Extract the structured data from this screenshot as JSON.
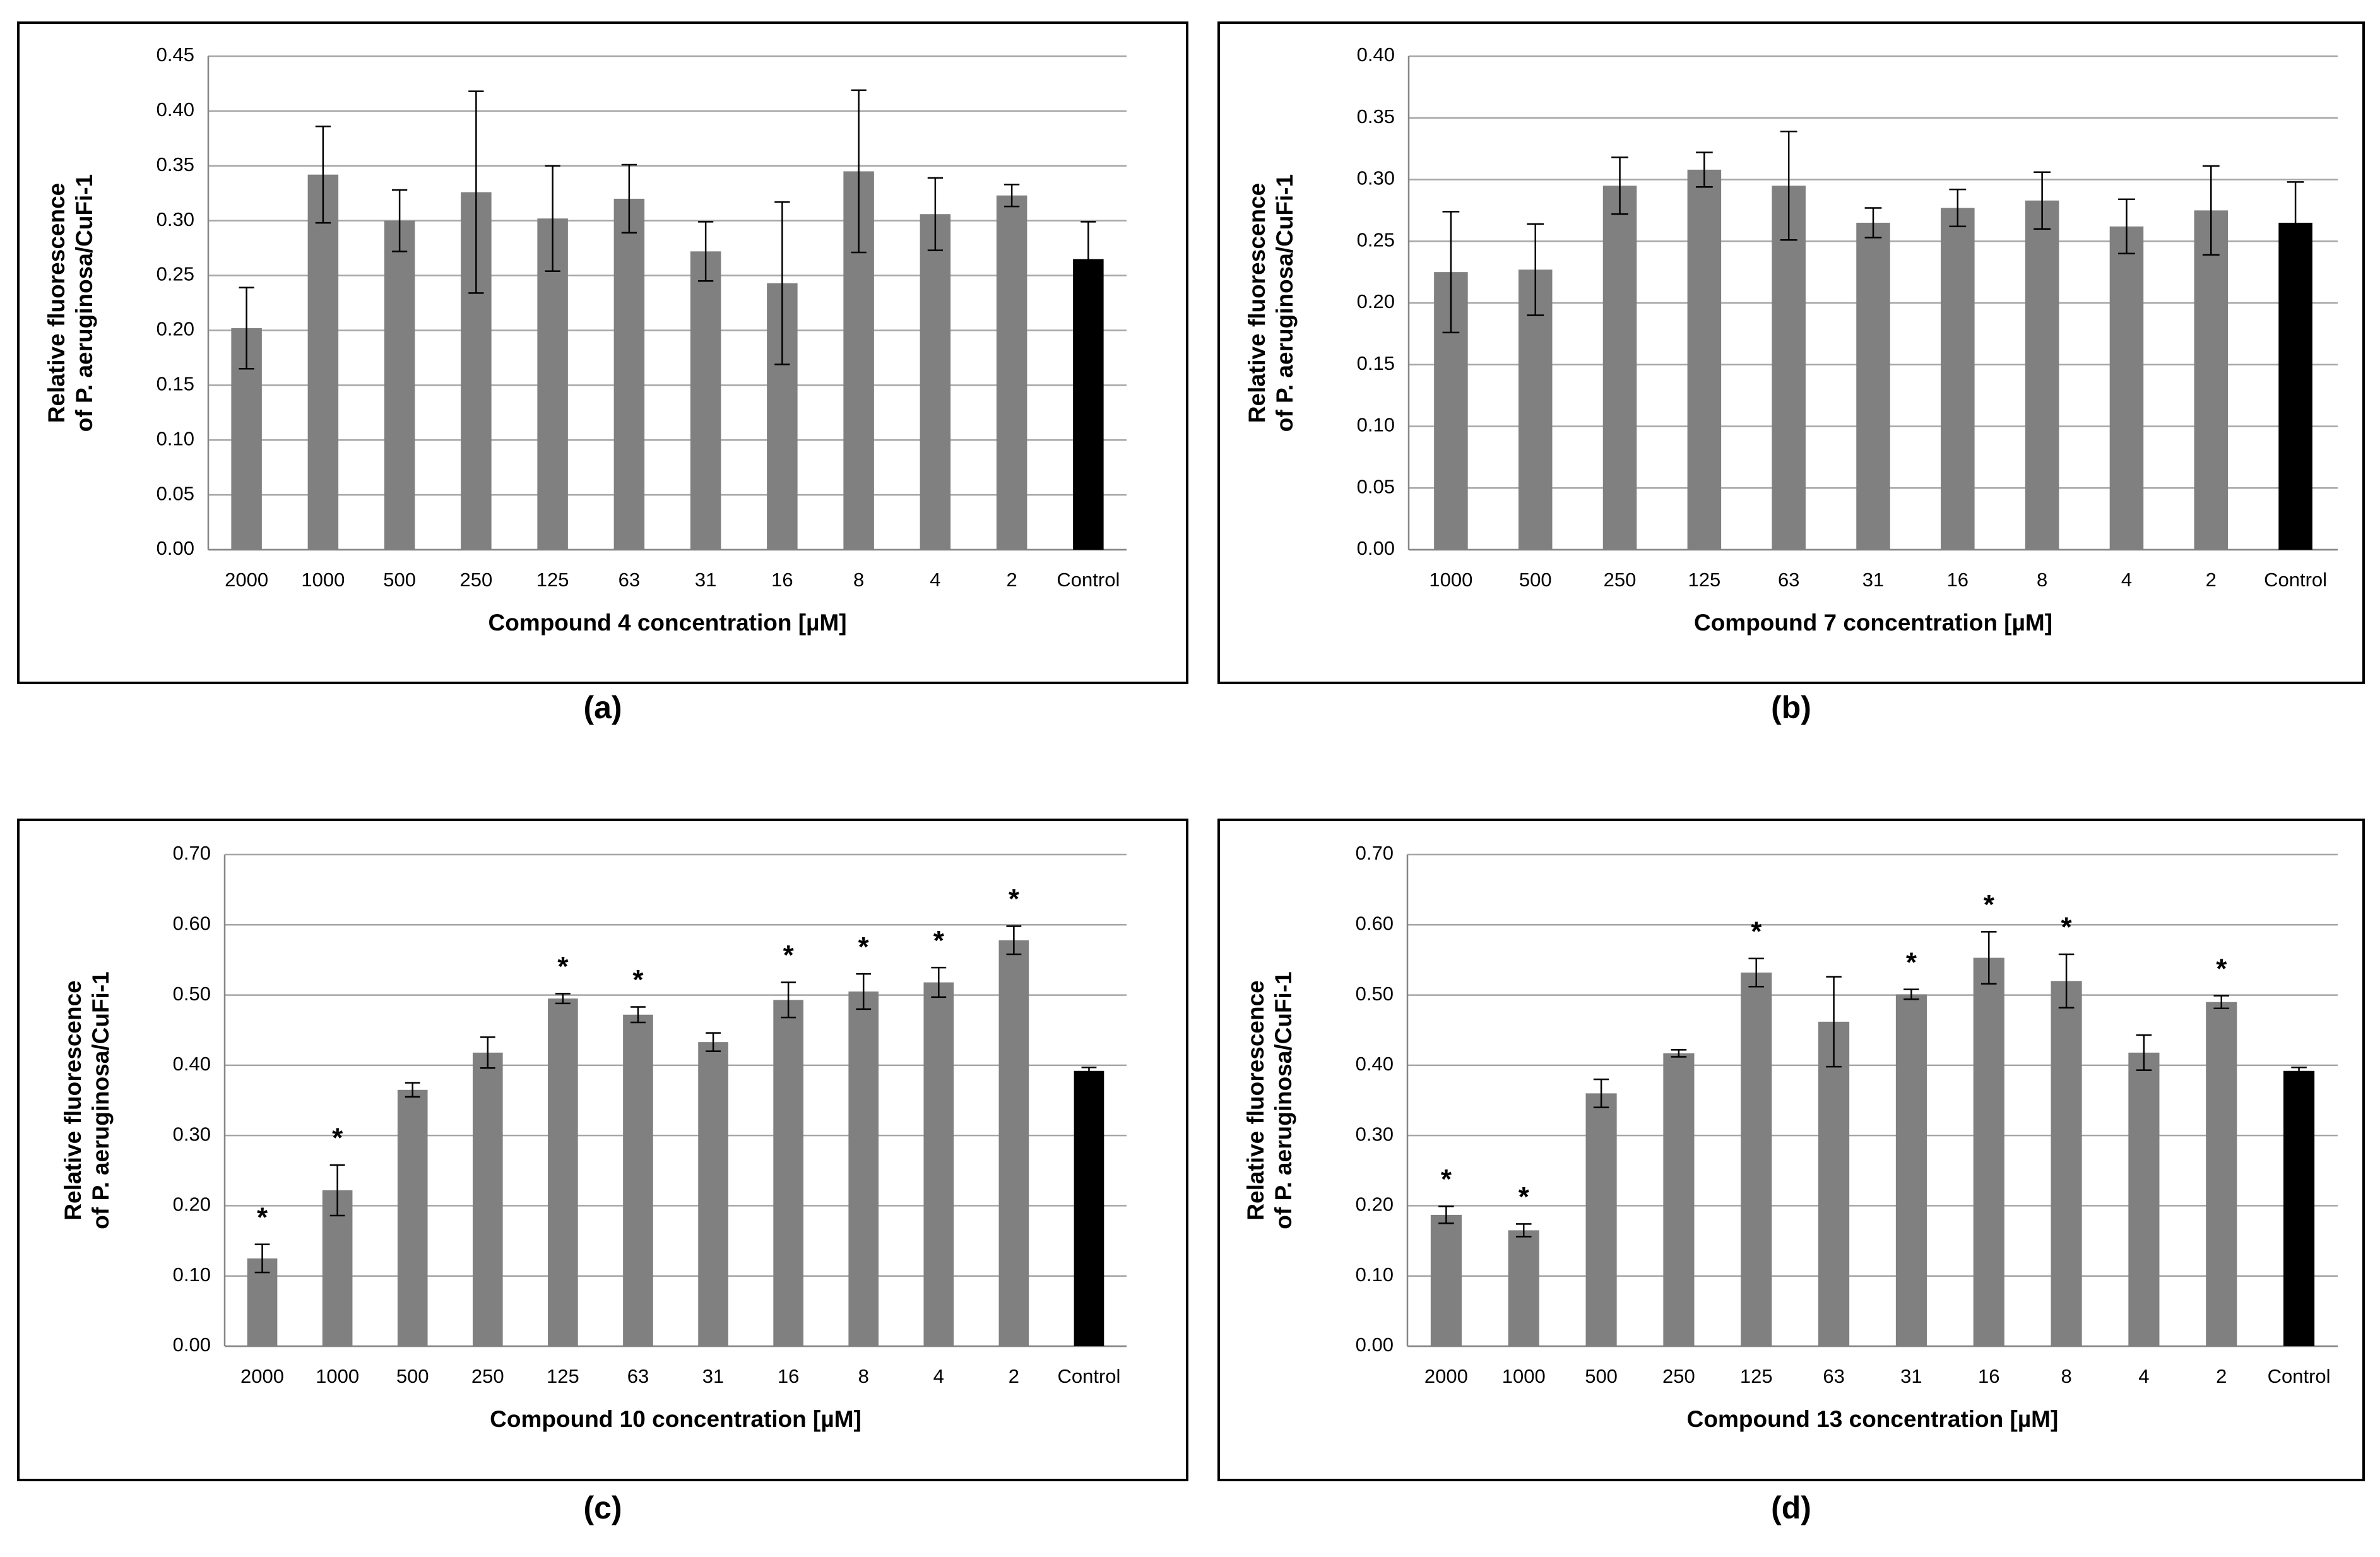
{
  "chart_data": [
    {
      "type": "bar",
      "panel_label": "(a)",
      "x_label": "Compound 4 concentration [µM]",
      "y_label": [
        "Relative fluorescence",
        "of P. aeruginosa/CuFi-1"
      ],
      "categories": [
        "2000",
        "1000",
        "500",
        "250",
        "125",
        "63",
        "31",
        "16",
        "8",
        "4",
        "2",
        "Control"
      ],
      "values": [
        0.202,
        0.342,
        0.3,
        0.326,
        0.302,
        0.32,
        0.272,
        0.243,
        0.345,
        0.306,
        0.323,
        0.265
      ],
      "errors": [
        0.037,
        0.044,
        0.028,
        0.092,
        0.048,
        0.031,
        0.027,
        0.074,
        0.074,
        0.033,
        0.01,
        0.034
      ],
      "colors": [
        "#808080",
        "#808080",
        "#808080",
        "#808080",
        "#808080",
        "#808080",
        "#808080",
        "#808080",
        "#808080",
        "#808080",
        "#808080",
        "#000000"
      ],
      "ylim": [
        0,
        0.45
      ],
      "yticks": [
        {
          "value": 0,
          "label": "0.00"
        },
        0.05,
        {
          "value": 0.1,
          "label": "0.10"
        },
        0.15,
        {
          "value": 0.2,
          "label": "0.20"
        },
        0.25,
        {
          "value": 0.3,
          "label": "0.30"
        },
        0.35,
        {
          "value": 0.4,
          "label": "0.40"
        },
        0.45
      ],
      "grid": true
    },
    {
      "type": "bar",
      "panel_label": "(b)",
      "x_label": "Compound 7 concentration [µM]",
      "y_label": [
        "Relative fluorescence",
        "of P. aeruginosa/CuFi-1"
      ],
      "categories": [
        "1000",
        "500",
        "250",
        "125",
        "63",
        "31",
        "16",
        "8",
        "4",
        "2",
        "Control"
      ],
      "values": [
        0.225,
        0.227,
        0.295,
        0.308,
        0.295,
        0.265,
        0.277,
        0.283,
        0.262,
        0.275,
        0.265
      ],
      "errors": [
        0.049,
        0.037,
        0.023,
        0.014,
        0.044,
        0.012,
        0.015,
        0.023,
        0.022,
        0.036,
        0.033
      ],
      "colors": [
        "#808080",
        "#808080",
        "#808080",
        "#808080",
        "#808080",
        "#808080",
        "#808080",
        "#808080",
        "#808080",
        "#808080",
        "#000000"
      ],
      "ylim": [
        0,
        0.4
      ],
      "yticks": [
        {
          "value": 0,
          "label": "0.00"
        },
        0.05,
        {
          "value": 0.1,
          "label": "0.10"
        },
        0.15,
        {
          "value": 0.2,
          "label": "0.20"
        },
        0.25,
        {
          "value": 0.3,
          "label": "0.30"
        },
        0.35,
        {
          "value": 0.4,
          "label": "0.40"
        }
      ],
      "grid": true
    },
    {
      "type": "bar",
      "panel_label": "(c)",
      "x_label": "Compound 10 concentration [µM]",
      "y_label": [
        "Relative fluorescence",
        "of P. aeruginosa/CuFi-1"
      ],
      "categories": [
        "2000",
        "1000",
        "500",
        "250",
        "125",
        "63",
        "31",
        "16",
        "8",
        "4",
        "2",
        "Control"
      ],
      "values": [
        0.125,
        0.222,
        0.365,
        0.418,
        0.495,
        0.472,
        0.433,
        0.493,
        0.505,
        0.518,
        0.578,
        0.392
      ],
      "errors": [
        0.02,
        0.036,
        0.01,
        0.022,
        0.007,
        0.011,
        0.013,
        0.025,
        0.025,
        0.021,
        0.02,
        0.005
      ],
      "significance": [
        "*",
        "*",
        null,
        null,
        "*",
        "*",
        null,
        "*",
        "*",
        "*",
        "*",
        null
      ],
      "colors": [
        "#808080",
        "#808080",
        "#808080",
        "#808080",
        "#808080",
        "#808080",
        "#808080",
        "#808080",
        "#808080",
        "#808080",
        "#808080",
        "#000000"
      ],
      "ylim": [
        0,
        0.7
      ],
      "yticks": [
        {
          "value": 0,
          "label": "0.00"
        },
        {
          "value": 0.1,
          "label": "0.10"
        },
        {
          "value": 0.2,
          "label": "0.20"
        },
        {
          "value": 0.3,
          "label": "0.30"
        },
        {
          "value": 0.4,
          "label": "0.40"
        },
        {
          "value": 0.5,
          "label": "0.50"
        },
        {
          "value": 0.6,
          "label": "0.60"
        },
        {
          "value": 0.7,
          "label": "0.70"
        }
      ],
      "grid": true
    },
    {
      "type": "bar",
      "panel_label": "(d)",
      "x_label": "Compound 13 concentration [µM]",
      "y_label": [
        "Relative fluorescence",
        "of P. aeruginosa/CuFi-1"
      ],
      "categories": [
        "2000",
        "1000",
        "500",
        "250",
        "125",
        "63",
        "31",
        "16",
        "8",
        "4",
        "2",
        "Control"
      ],
      "values": [
        0.187,
        0.165,
        0.36,
        0.417,
        0.532,
        0.462,
        0.501,
        0.553,
        0.52,
        0.418,
        0.49,
        0.392
      ],
      "errors": [
        0.012,
        0.009,
        0.02,
        0.005,
        0.02,
        0.064,
        0.007,
        0.037,
        0.038,
        0.025,
        0.009,
        0.005
      ],
      "significance": [
        "*",
        "*",
        null,
        null,
        "*",
        null,
        "*",
        "*",
        "*",
        null,
        "*",
        null
      ],
      "colors": [
        "#808080",
        "#808080",
        "#808080",
        "#808080",
        "#808080",
        "#808080",
        "#808080",
        "#808080",
        "#808080",
        "#808080",
        "#808080",
        "#000000"
      ],
      "ylim": [
        0,
        0.7
      ],
      "yticks": [
        {
          "value": 0,
          "label": "0.00"
        },
        {
          "value": 0.1,
          "label": "0.10"
        },
        {
          "value": 0.2,
          "label": "0.20"
        },
        {
          "value": 0.3,
          "label": "0.30"
        },
        {
          "value": 0.4,
          "label": "0.40"
        },
        {
          "value": 0.5,
          "label": "0.50"
        },
        {
          "value": 0.6,
          "label": "0.60"
        },
        {
          "value": 0.7,
          "label": "0.70"
        }
      ],
      "grid": true
    }
  ]
}
